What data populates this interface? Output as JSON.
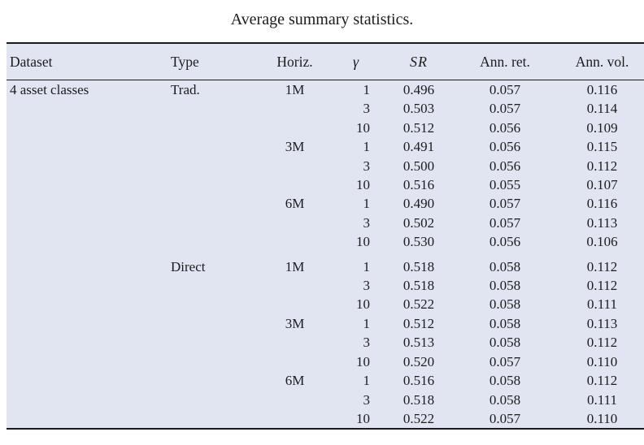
{
  "caption": "Average summary statistics.",
  "colors": {
    "band_background": "#e1e5f2",
    "rule": "#1a1a1a",
    "text": "#1c1c1c"
  },
  "table": {
    "columns": [
      "Dataset",
      "Type",
      "Horiz.",
      "γ",
      "SR",
      "Ann. ret.",
      "Ann. vol."
    ],
    "section_gap_rows": [
      9
    ],
    "rows": [
      [
        "4 asset classes",
        "Trad.",
        "1M",
        "1",
        "0.496",
        "0.057",
        "0.116"
      ],
      [
        "",
        "",
        "",
        "3",
        "0.503",
        "0.057",
        "0.114"
      ],
      [
        "",
        "",
        "",
        "10",
        "0.512",
        "0.056",
        "0.109"
      ],
      [
        "",
        "",
        "3M",
        "1",
        "0.491",
        "0.056",
        "0.115"
      ],
      [
        "",
        "",
        "",
        "3",
        "0.500",
        "0.056",
        "0.112"
      ],
      [
        "",
        "",
        "",
        "10",
        "0.516",
        "0.055",
        "0.107"
      ],
      [
        "",
        "",
        "6M",
        "1",
        "0.490",
        "0.057",
        "0.116"
      ],
      [
        "",
        "",
        "",
        "3",
        "0.502",
        "0.057",
        "0.113"
      ],
      [
        "",
        "",
        "",
        "10",
        "0.530",
        "0.056",
        "0.106"
      ],
      [
        "",
        "Direct",
        "1M",
        "1",
        "0.518",
        "0.058",
        "0.112"
      ],
      [
        "",
        "",
        "",
        "3",
        "0.518",
        "0.058",
        "0.112"
      ],
      [
        "",
        "",
        "",
        "10",
        "0.522",
        "0.058",
        "0.111"
      ],
      [
        "",
        "",
        "3M",
        "1",
        "0.512",
        "0.058",
        "0.113"
      ],
      [
        "",
        "",
        "",
        "3",
        "0.513",
        "0.058",
        "0.112"
      ],
      [
        "",
        "",
        "",
        "10",
        "0.520",
        "0.057",
        "0.110"
      ],
      [
        "",
        "",
        "6M",
        "1",
        "0.516",
        "0.058",
        "0.112"
      ],
      [
        "",
        "",
        "",
        "3",
        "0.518",
        "0.058",
        "0.111"
      ],
      [
        "",
        "",
        "",
        "10",
        "0.522",
        "0.057",
        "0.110"
      ]
    ]
  }
}
